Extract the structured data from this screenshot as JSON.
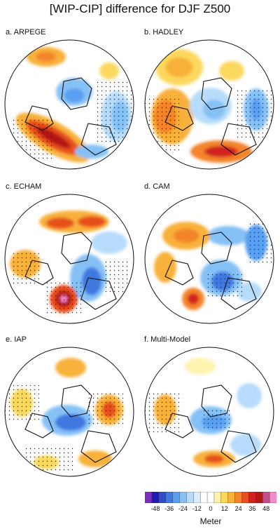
{
  "title": "[WIP-CIP] difference for DJF Z500",
  "panels": [
    {
      "label": "a. ARPEGE"
    },
    {
      "label": "b. HADLEY"
    },
    {
      "label": "c. ECHAM"
    },
    {
      "label": "d. CAM"
    },
    {
      "label": "e. IAP"
    },
    {
      "label": "f. Multi-Model"
    }
  ],
  "legend": {
    "tick_labels": [
      "-48",
      "-36",
      "-24",
      "-12",
      "0",
      "12",
      "24",
      "36",
      "48"
    ],
    "units": "Meter",
    "colors": [
      "#7b2fbe",
      "#1c1cb4",
      "#2f4ccc",
      "#3f78e0",
      "#5a9ff0",
      "#86c1f6",
      "#b7dcfb",
      "#dceefd",
      "#ffffff",
      "#ffffff",
      "#fff3b0",
      "#fdd85e",
      "#f8b13a",
      "#f3842b",
      "#e6501f",
      "#d12020",
      "#b31818",
      "#c0508a",
      "#f08cc8"
    ]
  }
}
